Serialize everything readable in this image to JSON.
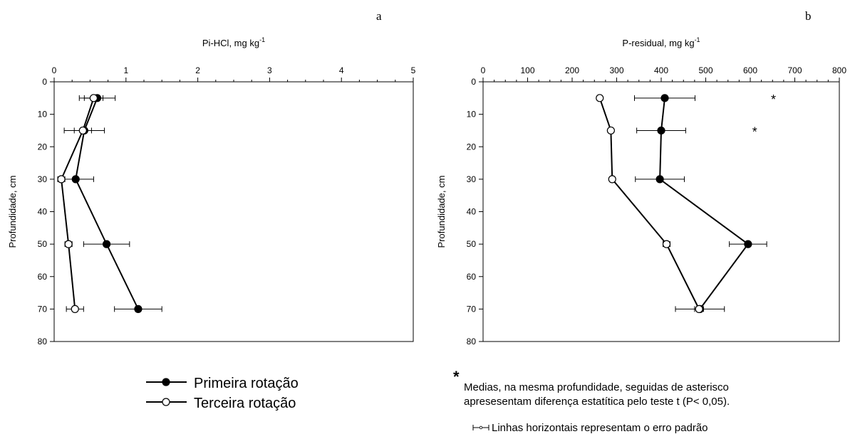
{
  "chart_data": [
    {
      "type": "line",
      "panel_letter": "a",
      "xlabel": "Pi-HCl, mg kg",
      "xlabel_sup": "-1",
      "ylabel": "Profundidade, cm",
      "xlim": [
        0,
        5
      ],
      "ylim": [
        0,
        80
      ],
      "y_inverted": true,
      "x_axis_position": "top",
      "x_ticks": [
        0,
        1,
        2,
        3,
        4,
        5
      ],
      "y_ticks": [
        0,
        10,
        20,
        30,
        40,
        50,
        60,
        70,
        80
      ],
      "grid": false,
      "series": [
        {
          "name": "Primeira rotação",
          "marker": "filled-circle",
          "points": [
            {
              "depth": 5,
              "value": 0.6,
              "err": 0.25
            },
            {
              "depth": 15,
              "value": 0.42,
              "err": 0.28
            },
            {
              "depth": 30,
              "value": 0.3,
              "err": 0.25
            },
            {
              "depth": 50,
              "value": 0.73,
              "err": 0.32
            },
            {
              "depth": 70,
              "value": 1.17,
              "err": 0.33
            }
          ]
        },
        {
          "name": "Terceira rotação",
          "marker": "open-circle",
          "points": [
            {
              "depth": 5,
              "value": 0.55,
              "err": 0.13
            },
            {
              "depth": 15,
              "value": 0.4,
              "err": 0.12
            },
            {
              "depth": 30,
              "value": 0.1,
              "err": 0.05
            },
            {
              "depth": 50,
              "value": 0.2,
              "err": 0.05
            },
            {
              "depth": 70,
              "value": 0.29,
              "err": 0.12
            }
          ]
        }
      ],
      "annotations": []
    },
    {
      "type": "line",
      "panel_letter": "b",
      "xlabel": "P-residual, mg kg",
      "xlabel_sup": "-1",
      "ylabel": "Profundidade, cm",
      "xlim": [
        0,
        800
      ],
      "ylim": [
        0,
        80
      ],
      "y_inverted": true,
      "x_axis_position": "top",
      "x_ticks": [
        0,
        100,
        200,
        300,
        400,
        500,
        600,
        700,
        800
      ],
      "y_ticks": [
        0,
        10,
        20,
        30,
        40,
        50,
        60,
        70,
        80
      ],
      "grid": false,
      "series": [
        {
          "name": "Primeira rotação",
          "marker": "filled-circle",
          "points": [
            {
              "depth": 5,
              "value": 408,
              "err": 68
            },
            {
              "depth": 15,
              "value": 400,
              "err": 55
            },
            {
              "depth": 30,
              "value": 397,
              "err": 55
            },
            {
              "depth": 50,
              "value": 595,
              "err": 42
            },
            {
              "depth": 70,
              "value": 487,
              "err": 55
            }
          ]
        },
        {
          "name": "Terceira rotação",
          "marker": "open-circle",
          "points": [
            {
              "depth": 5,
              "value": 262,
              "err": 5
            },
            {
              "depth": 15,
              "value": 287,
              "err": 5
            },
            {
              "depth": 30,
              "value": 290,
              "err": 5
            },
            {
              "depth": 50,
              "value": 412,
              "err": 8
            },
            {
              "depth": 70,
              "value": 485,
              "err": 10
            }
          ]
        }
      ],
      "annotations": [
        {
          "text": "*",
          "x": 652,
          "depth": 5
        },
        {
          "text": "*",
          "x": 610,
          "depth": 15
        }
      ]
    }
  ],
  "legend": {
    "series": [
      "Primeira rotação",
      "Terceira rotação"
    ]
  },
  "notes": {
    "asterisk": "*",
    "asterisk_line1": "Medias, na mesma profundidade, seguidas de asterisco",
    "asterisk_line2": "apresesentam diferença estatítica pelo teste t (P< 0,05).",
    "errorbar_text": "Linhas horizontais representam o erro padrão"
  }
}
